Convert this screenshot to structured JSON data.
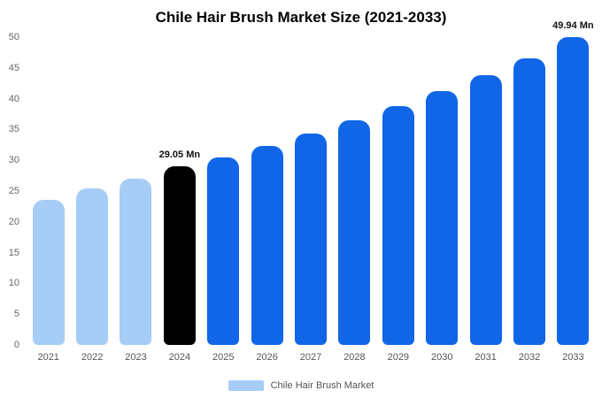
{
  "chart_data": {
    "type": "bar",
    "title": "Chile Hair Brush Market Size (2021-2033)",
    "unit": "Mn",
    "ylim": [
      0,
      50
    ],
    "yticks": [
      0,
      5,
      10,
      15,
      20,
      25,
      30,
      35,
      40,
      45,
      50
    ],
    "grid": false,
    "legend_position": "bottom",
    "colors": {
      "historical": "#a6cdf6",
      "highlight": "#000000",
      "forecast": "#1166e8"
    },
    "points": [
      {
        "year": "2021",
        "value": 23.6,
        "color": "#a6cdf6",
        "label": ""
      },
      {
        "year": "2022",
        "value": 25.4,
        "color": "#a6cdf6",
        "label": ""
      },
      {
        "year": "2023",
        "value": 27.0,
        "color": "#a6cdf6",
        "label": ""
      },
      {
        "year": "2024",
        "value": 29.05,
        "color": "#000000",
        "label": "29.05 Mn"
      },
      {
        "year": "2025",
        "value": 30.5,
        "color": "#1166e8",
        "label": ""
      },
      {
        "year": "2026",
        "value": 32.3,
        "color": "#1166e8",
        "label": ""
      },
      {
        "year": "2027",
        "value": 34.4,
        "color": "#1166e8",
        "label": ""
      },
      {
        "year": "2028",
        "value": 36.5,
        "color": "#1166e8",
        "label": ""
      },
      {
        "year": "2029",
        "value": 38.8,
        "color": "#1166e8",
        "label": ""
      },
      {
        "year": "2030",
        "value": 41.2,
        "color": "#1166e8",
        "label": ""
      },
      {
        "year": "2031",
        "value": 43.8,
        "color": "#1166e8",
        "label": ""
      },
      {
        "year": "2032",
        "value": 46.6,
        "color": "#1166e8",
        "label": ""
      },
      {
        "year": "2033",
        "value": 49.94,
        "color": "#1166e8",
        "label": "49.94 Mn"
      }
    ],
    "legend": {
      "label": "Chile Hair Brush Market",
      "swatch_color": "#a6cdf6"
    }
  }
}
